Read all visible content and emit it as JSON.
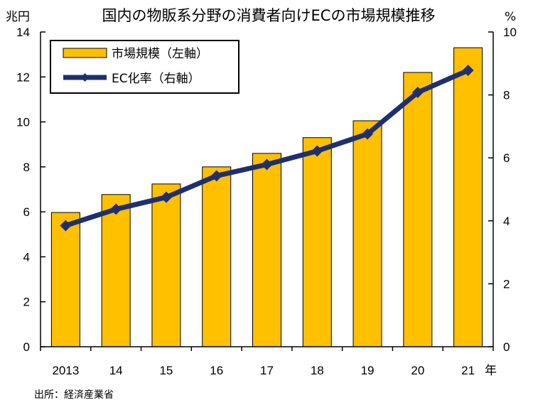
{
  "chart_data": {
    "type": "bar+line",
    "title": "国内の物販系分野の消費者向けECの市場規模推移",
    "categories": [
      "2013",
      "14",
      "15",
      "16",
      "17",
      "18",
      "19",
      "20",
      "21"
    ],
    "x_unit": "年",
    "y_left": {
      "unit": "兆円",
      "range": [
        0,
        14
      ],
      "ticks": [
        0,
        2,
        4,
        6,
        8,
        10,
        12,
        14
      ]
    },
    "y_right": {
      "unit": "%",
      "range": [
        0,
        10
      ],
      "ticks": [
        0,
        2,
        4,
        6,
        8,
        10
      ]
    },
    "series": [
      {
        "name": "市場規模（左軸）",
        "type": "bar",
        "axis": "left",
        "color": "#ffc000",
        "values": [
          5.97,
          6.77,
          7.24,
          8.0,
          8.6,
          9.3,
          10.05,
          12.2,
          13.3
        ]
      },
      {
        "name": "EC化率（右軸）",
        "type": "line",
        "axis": "right",
        "color": "#1f2f6e",
        "values": [
          3.85,
          4.37,
          4.75,
          5.43,
          5.79,
          6.22,
          6.76,
          8.08,
          8.78
        ]
      }
    ],
    "grid": false,
    "legend_position": "top-left",
    "source": "出所：経済産業省"
  }
}
